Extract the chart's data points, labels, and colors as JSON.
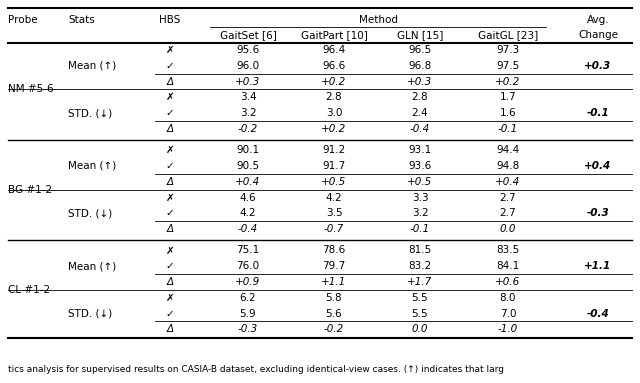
{
  "figsize": [
    6.4,
    3.83
  ],
  "dpi": 100,
  "bg_color": "#ffffff",
  "font_size": 7.5,
  "caption": "tics analysis for supervised results on CASIA-B dataset, excluding identical-view cases. (↑) indicates that larg",
  "col_headers_row1": [
    "Probe",
    "Stats",
    "HBS",
    "Method",
    "Avg."
  ],
  "col_headers_row2": [
    "GaitSet [6]",
    "GaitPart [10]",
    "GLN [15]",
    "GaitGL [23]",
    "Change"
  ],
  "rows": [
    [
      "✗",
      "95.6",
      "96.4",
      "96.5",
      "97.3",
      ""
    ],
    [
      "✓",
      "96.0",
      "96.6",
      "96.8",
      "97.5",
      "+0.3"
    ],
    [
      "Δ",
      "+0.3",
      "+0.2",
      "+0.3",
      "+0.2",
      ""
    ],
    [
      "✗",
      "3.4",
      "2.8",
      "2.8",
      "1.7",
      ""
    ],
    [
      "✓",
      "3.2",
      "3.0",
      "2.4",
      "1.6",
      "-0.1"
    ],
    [
      "Δ",
      "-0.2",
      "+0.2",
      "-0.4",
      "-0.1",
      ""
    ],
    [
      "✗",
      "90.1",
      "91.2",
      "93.1",
      "94.4",
      ""
    ],
    [
      "✓",
      "90.5",
      "91.7",
      "93.6",
      "94.8",
      "+0.4"
    ],
    [
      "Δ",
      "+0.4",
      "+0.5",
      "+0.5",
      "+0.4",
      ""
    ],
    [
      "✗",
      "4.6",
      "4.2",
      "3.3",
      "2.7",
      ""
    ],
    [
      "✓",
      "4.2",
      "3.5",
      "3.2",
      "2.7",
      "-0.3"
    ],
    [
      "Δ",
      "-0.4",
      "-0.7",
      "-0.1",
      "0.0",
      ""
    ],
    [
      "✗",
      "75.1",
      "78.6",
      "81.5",
      "83.5",
      ""
    ],
    [
      "✓",
      "76.0",
      "79.7",
      "83.2",
      "84.1",
      "+1.1"
    ],
    [
      "Δ",
      "+0.9",
      "+1.1",
      "+1.7",
      "+0.6",
      ""
    ],
    [
      "✗",
      "6.2",
      "5.8",
      "5.5",
      "8.0",
      ""
    ],
    [
      "✓",
      "5.9",
      "5.6",
      "5.5",
      "7.0",
      "-0.4"
    ],
    [
      "Δ",
      "-0.3",
      "-0.2",
      "0.0",
      "-1.0",
      ""
    ]
  ],
  "probe_labels": [
    "NM #5-6",
    "BG #1-2",
    "CL #1-2"
  ],
  "stats_labels": [
    "Mean (↑)",
    "STD. (↓)"
  ],
  "avg_vals": [
    "+0.3",
    "-0.1",
    "+0.4",
    "-0.3",
    "+1.1",
    "-0.4"
  ],
  "avg_rows": [
    1,
    4,
    7,
    10,
    13,
    16
  ]
}
